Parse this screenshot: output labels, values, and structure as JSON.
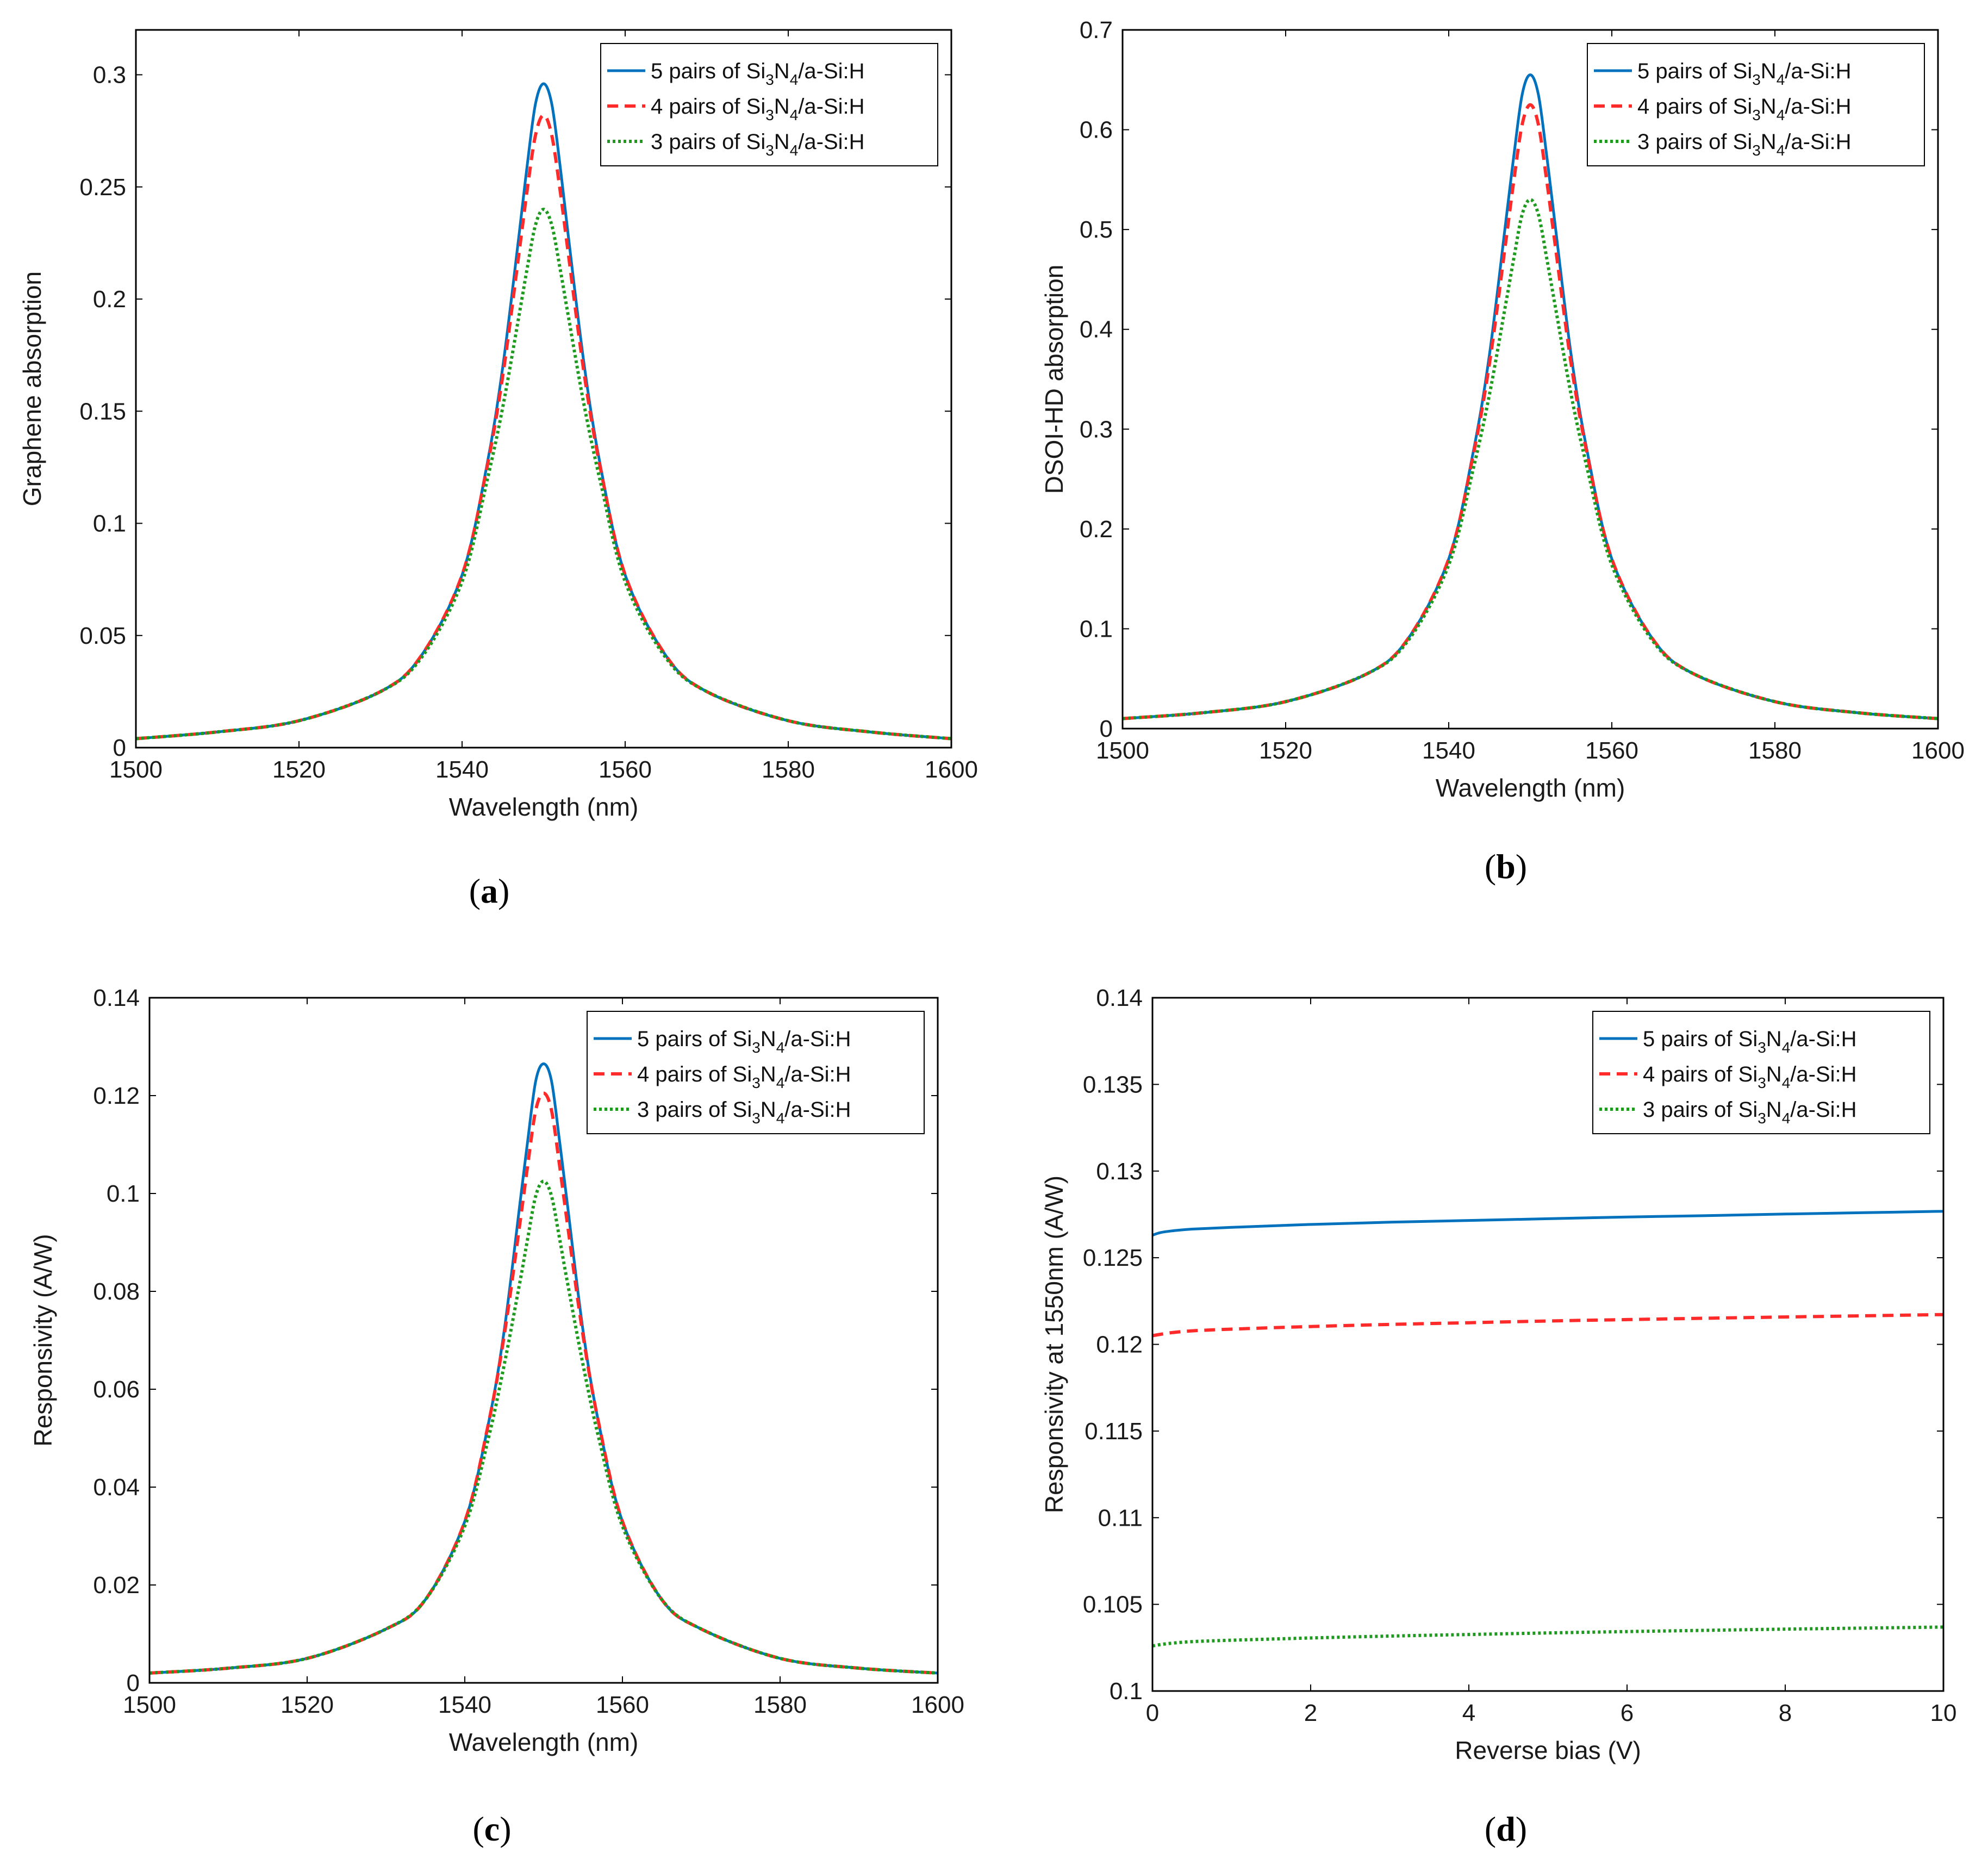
{
  "colors": {
    "series_5_pairs": "#0072BD",
    "series_4_pairs": "#FF2A2A",
    "series_3_pairs": "#1E9B1E",
    "axis": "#000000"
  },
  "legend_labels": [
    {
      "pre": "5 pairs of Si",
      "sub1": "3",
      "mid": "N",
      "sub2": "4",
      "post": "/a-Si:H"
    },
    {
      "pre": "4 pairs of Si",
      "sub1": "3",
      "mid": "N",
      "sub2": "4",
      "post": "/a-Si:H"
    },
    {
      "pre": "3 pairs of Si",
      "sub1": "3",
      "mid": "N",
      "sub2": "4",
      "post": "/a-Si:H"
    }
  ],
  "chart_data": [
    {
      "type": "line",
      "panel": "a",
      "caption": {
        "open": "(",
        "letter": "a",
        "close": ")"
      },
      "xlabel": "Wavelength (nm)",
      "ylabel": "Graphene absorption",
      "xlim": [
        1500,
        1600
      ],
      "ylim": [
        0,
        0.32
      ],
      "xticks": [
        1500,
        1520,
        1540,
        1560,
        1580,
        1600
      ],
      "xtick_labels": [
        "1500",
        "1520",
        "1540",
        "1560",
        "1580",
        "1600"
      ],
      "yticks": [
        0,
        0.05,
        0.1,
        0.15,
        0.2,
        0.25,
        0.3
      ],
      "ytick_labels": [
        "0",
        "0.05",
        "0.1",
        "0.15",
        "0.2",
        "0.25",
        "0.3"
      ],
      "legend_position": "top-right",
      "series": [
        {
          "name": "5 pairs of Si3N4/a-Si:H",
          "style": "solid",
          "x": [
            1500,
            1510,
            1520,
            1530,
            1535,
            1540,
            1543,
            1545,
            1547,
            1548,
            1549,
            1550,
            1551,
            1552,
            1553,
            1555,
            1557,
            1560,
            1565,
            1570,
            1580,
            1590,
            1600
          ],
          "y": [
            0.004,
            0.007,
            0.012,
            0.025,
            0.041,
            0.077,
            0.125,
            0.17,
            0.229,
            0.26,
            0.287,
            0.296,
            0.287,
            0.26,
            0.229,
            0.17,
            0.125,
            0.077,
            0.041,
            0.025,
            0.012,
            0.007,
            0.004
          ]
        },
        {
          "name": "4 pairs of Si3N4/a-Si:H",
          "style": "dashed",
          "x": [
            1500,
            1510,
            1520,
            1530,
            1535,
            1540,
            1543,
            1545,
            1547,
            1548,
            1549,
            1550,
            1551,
            1552,
            1553,
            1555,
            1557,
            1560,
            1565,
            1570,
            1580,
            1590,
            1600
          ],
          "y": [
            0.004,
            0.007,
            0.012,
            0.025,
            0.041,
            0.077,
            0.124,
            0.166,
            0.221,
            0.249,
            0.273,
            0.282,
            0.273,
            0.249,
            0.221,
            0.166,
            0.124,
            0.077,
            0.041,
            0.025,
            0.012,
            0.007,
            0.004
          ]
        },
        {
          "name": "3 pairs of Si3N4/a-Si:H",
          "style": "dotted",
          "x": [
            1500,
            1510,
            1520,
            1530,
            1535,
            1540,
            1543,
            1545,
            1547,
            1548,
            1549,
            1550,
            1551,
            1552,
            1553,
            1555,
            1557,
            1560,
            1565,
            1570,
            1580,
            1590,
            1600
          ],
          "y": [
            0.004,
            0.007,
            0.012,
            0.025,
            0.04,
            0.074,
            0.118,
            0.152,
            0.193,
            0.214,
            0.233,
            0.24,
            0.233,
            0.214,
            0.193,
            0.152,
            0.118,
            0.074,
            0.04,
            0.025,
            0.012,
            0.007,
            0.004
          ]
        }
      ]
    },
    {
      "type": "line",
      "panel": "b",
      "caption": {
        "open": "(",
        "letter": "b",
        "close": ")"
      },
      "xlabel": "Wavelength (nm)",
      "ylabel": "DSOI-HD absorption",
      "xlim": [
        1500,
        1600
      ],
      "ylim": [
        0,
        0.7
      ],
      "xticks": [
        1500,
        1520,
        1540,
        1560,
        1580,
        1600
      ],
      "xtick_labels": [
        "1500",
        "1520",
        "1540",
        "1560",
        "1580",
        "1600"
      ],
      "yticks": [
        0,
        0.1,
        0.2,
        0.3,
        0.4,
        0.5,
        0.6,
        0.7
      ],
      "ytick_labels": [
        "0",
        "0.1",
        "0.2",
        "0.3",
        "0.4",
        "0.5",
        "0.6",
        "0.7"
      ],
      "legend_position": "top-right",
      "series": [
        {
          "name": "5 pairs of Si3N4/a-Si:H",
          "style": "solid",
          "x": [
            1500,
            1510,
            1520,
            1530,
            1535,
            1540,
            1543,
            1545,
            1547,
            1548,
            1549,
            1550,
            1551,
            1552,
            1553,
            1555,
            1557,
            1560,
            1565,
            1570,
            1580,
            1590,
            1600
          ],
          "y": [
            0.01,
            0.016,
            0.027,
            0.055,
            0.09,
            0.17,
            0.277,
            0.375,
            0.508,
            0.575,
            0.635,
            0.655,
            0.635,
            0.575,
            0.508,
            0.375,
            0.277,
            0.17,
            0.09,
            0.055,
            0.027,
            0.016,
            0.01
          ]
        },
        {
          "name": "4 pairs of Si3N4/a-Si:H",
          "style": "dashed",
          "x": [
            1500,
            1510,
            1520,
            1530,
            1535,
            1540,
            1543,
            1545,
            1547,
            1548,
            1549,
            1550,
            1551,
            1552,
            1553,
            1555,
            1557,
            1560,
            1565,
            1570,
            1580,
            1590,
            1600
          ],
          "y": [
            0.01,
            0.016,
            0.027,
            0.055,
            0.09,
            0.17,
            0.274,
            0.366,
            0.488,
            0.55,
            0.605,
            0.625,
            0.605,
            0.55,
            0.488,
            0.366,
            0.274,
            0.17,
            0.09,
            0.055,
            0.027,
            0.016,
            0.01
          ]
        },
        {
          "name": "3 pairs of Si3N4/a-Si:H",
          "style": "dotted",
          "x": [
            1500,
            1510,
            1520,
            1530,
            1535,
            1540,
            1543,
            1545,
            1547,
            1548,
            1549,
            1550,
            1551,
            1552,
            1553,
            1555,
            1557,
            1560,
            1565,
            1570,
            1580,
            1590,
            1600
          ],
          "y": [
            0.01,
            0.016,
            0.027,
            0.055,
            0.088,
            0.164,
            0.26,
            0.335,
            0.426,
            0.472,
            0.515,
            0.53,
            0.515,
            0.472,
            0.426,
            0.335,
            0.26,
            0.164,
            0.088,
            0.055,
            0.027,
            0.016,
            0.01
          ]
        }
      ]
    },
    {
      "type": "line",
      "panel": "c",
      "caption": {
        "open": "(",
        "letter": "c",
        "close": ")"
      },
      "xlabel": "Wavelength (nm)",
      "ylabel": "Responsivity (A/W)",
      "xlim": [
        1500,
        1600
      ],
      "ylim": [
        0,
        0.14
      ],
      "xticks": [
        1500,
        1520,
        1540,
        1560,
        1580,
        1600
      ],
      "xtick_labels": [
        "1500",
        "1520",
        "1540",
        "1560",
        "1580",
        "1600"
      ],
      "yticks": [
        0,
        0.02,
        0.04,
        0.06,
        0.08,
        0.1,
        0.12,
        0.14
      ],
      "ytick_labels": [
        "0",
        "0.02",
        "0.04",
        "0.06",
        "0.08",
        "0.1",
        "0.12",
        "0.14"
      ],
      "legend_position": "top-right",
      "series": [
        {
          "name": "5 pairs of Si3N4/a-Si:H",
          "style": "solid",
          "x": [
            1500,
            1510,
            1520,
            1530,
            1535,
            1540,
            1543,
            1545,
            1547,
            1548,
            1549,
            1550,
            1551,
            1552,
            1553,
            1555,
            1557,
            1560,
            1565,
            1570,
            1580,
            1590,
            1600
          ],
          "y": [
            0.002,
            0.003,
            0.005,
            0.011,
            0.017,
            0.033,
            0.053,
            0.072,
            0.098,
            0.111,
            0.123,
            0.1265,
            0.123,
            0.111,
            0.098,
            0.072,
            0.053,
            0.033,
            0.017,
            0.011,
            0.005,
            0.003,
            0.002
          ]
        },
        {
          "name": "4 pairs of Si3N4/a-Si:H",
          "style": "dashed",
          "x": [
            1500,
            1510,
            1520,
            1530,
            1535,
            1540,
            1543,
            1545,
            1547,
            1548,
            1549,
            1550,
            1551,
            1552,
            1553,
            1555,
            1557,
            1560,
            1565,
            1570,
            1580,
            1590,
            1600
          ],
          "y": [
            0.002,
            0.003,
            0.005,
            0.011,
            0.017,
            0.033,
            0.053,
            0.071,
            0.094,
            0.106,
            0.117,
            0.1205,
            0.117,
            0.106,
            0.094,
            0.071,
            0.053,
            0.033,
            0.017,
            0.011,
            0.005,
            0.003,
            0.002
          ]
        },
        {
          "name": "3 pairs of Si3N4/a-Si:H",
          "style": "dotted",
          "x": [
            1500,
            1510,
            1520,
            1530,
            1535,
            1540,
            1543,
            1545,
            1547,
            1548,
            1549,
            1550,
            1551,
            1552,
            1553,
            1555,
            1557,
            1560,
            1565,
            1570,
            1580,
            1590,
            1600
          ],
          "y": [
            0.002,
            0.003,
            0.005,
            0.011,
            0.017,
            0.032,
            0.05,
            0.065,
            0.082,
            0.091,
            0.0995,
            0.1025,
            0.0995,
            0.091,
            0.082,
            0.065,
            0.05,
            0.032,
            0.017,
            0.011,
            0.005,
            0.003,
            0.002
          ]
        }
      ]
    },
    {
      "type": "line",
      "panel": "d",
      "caption": {
        "open": "(",
        "letter": "d",
        "close": ")"
      },
      "xlabel": "Reverse bias (V)",
      "ylabel": "Responsivity at 1550nm (A/W)",
      "xlim": [
        0,
        10
      ],
      "ylim": [
        0.1,
        0.14
      ],
      "xticks": [
        0,
        2,
        4,
        6,
        8,
        10
      ],
      "xtick_labels": [
        "0",
        "2",
        "4",
        "6",
        "8",
        "10"
      ],
      "yticks": [
        0.1,
        0.105,
        0.11,
        0.115,
        0.12,
        0.125,
        0.13,
        0.135,
        0.14
      ],
      "ytick_labels": [
        "0.1",
        "0.105",
        "0.11",
        "0.115",
        "0.12",
        "0.125",
        "0.13",
        "0.135",
        "0.14"
      ],
      "legend_position": "top-right",
      "series": [
        {
          "name": "5 pairs of Si3N4/a-Si:H",
          "style": "solid",
          "x": [
            0,
            0.1,
            0.25,
            0.5,
            1,
            2,
            3,
            4,
            5,
            6,
            7,
            8,
            9,
            10
          ],
          "y": [
            0.1263,
            0.12645,
            0.12655,
            0.12665,
            0.12675,
            0.12692,
            0.12705,
            0.12715,
            0.12725,
            0.12735,
            0.12743,
            0.12752,
            0.1276,
            0.12768
          ]
        },
        {
          "name": "4 pairs of Si3N4/a-Si:H",
          "style": "dashed",
          "x": [
            0,
            0.1,
            0.25,
            0.5,
            1,
            2,
            3,
            4,
            5,
            6,
            7,
            8,
            9,
            10
          ],
          "y": [
            0.1205,
            0.12058,
            0.12068,
            0.12078,
            0.12088,
            0.12103,
            0.12115,
            0.12125,
            0.12135,
            0.12143,
            0.12151,
            0.12158,
            0.12165,
            0.12172
          ]
        },
        {
          "name": "3 pairs of Si3N4/a-Si:H",
          "style": "dotted",
          "x": [
            0,
            0.1,
            0.25,
            0.5,
            1,
            2,
            3,
            4,
            5,
            6,
            7,
            8,
            9,
            10
          ],
          "y": [
            0.1026,
            0.10268,
            0.10276,
            0.10285,
            0.10293,
            0.10306,
            0.10317,
            0.10326,
            0.10335,
            0.10343,
            0.1035,
            0.10357,
            0.10363,
            0.10369
          ]
        }
      ]
    }
  ]
}
